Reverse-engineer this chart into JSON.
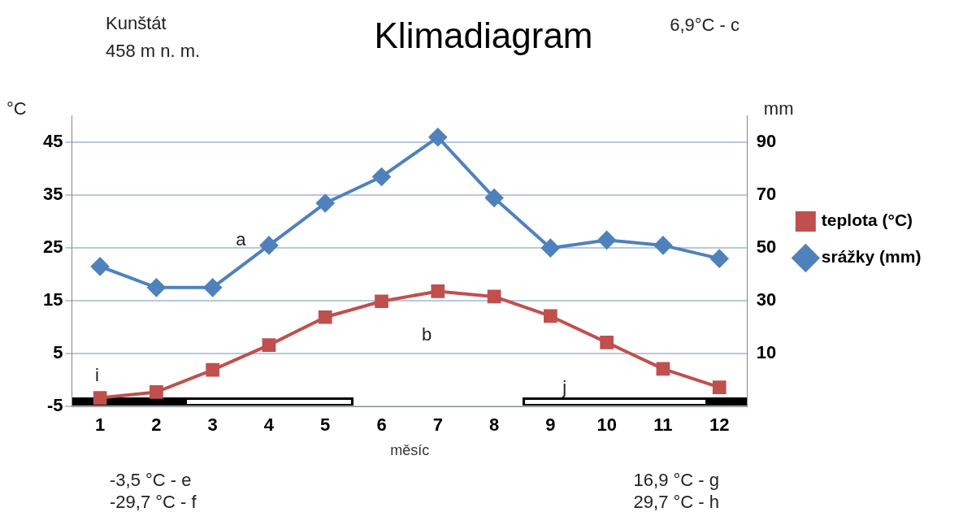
{
  "chart_data": {
    "type": "line",
    "title": "Klimadiagram",
    "xlabel": "měsíc",
    "ylabel": "°C",
    "y2label": "mm",
    "x": [
      1,
      2,
      3,
      4,
      5,
      6,
      7,
      8,
      9,
      10,
      11,
      12
    ],
    "xlim": [
      0.5,
      12.5
    ],
    "xticks": [
      1,
      2,
      3,
      4,
      5,
      6,
      7,
      8,
      9,
      10,
      11,
      12
    ],
    "ylim": [
      -5,
      50
    ],
    "yticks": [
      -5,
      5,
      15,
      25,
      35,
      45
    ],
    "y2lim": [
      -10,
      100
    ],
    "y2ticks": [
      10,
      30,
      50,
      70,
      90
    ],
    "series": [
      {
        "name": "teplota (°C)",
        "color": "#c0504d",
        "marker": "square",
        "values": [
          -3.4,
          -2.3,
          1.9,
          6.6,
          11.9,
          14.9,
          16.8,
          15.8,
          12.1,
          7.1,
          2.1,
          -1.4
        ]
      },
      {
        "name": "srážky (mm)",
        "color": "#4f81bd",
        "marker": "diamond",
        "axis": "y2",
        "values": [
          43,
          35,
          35,
          51,
          67,
          77,
          92,
          69,
          50,
          53,
          51,
          46
        ]
      }
    ],
    "annotations": [
      "Kunštát",
      "458 m n. m.",
      "6,9°C - c",
      "-3,5 °C - e",
      "-29,7 °C - f",
      "16,9 °C - g",
      "29,7 °C - h",
      "a",
      "b",
      "i",
      "j"
    ],
    "grid": "y",
    "legend": "right",
    "line_style": "solid"
  }
}
